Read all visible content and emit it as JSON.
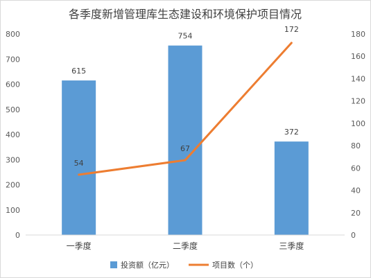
{
  "chart_data": {
    "type": "bar",
    "title": "各季度新增管理库生态建设和环境保护项目情况",
    "categories": [
      "一季度",
      "二季度",
      "三季度"
    ],
    "series": [
      {
        "name": "投资额（亿元）",
        "type": "bar",
        "axis": "left",
        "values": [
          615,
          754,
          372
        ],
        "color": "#5b9bd5"
      },
      {
        "name": "项目数（个）",
        "type": "line",
        "axis": "right",
        "values": [
          54,
          67,
          172
        ],
        "color": "#ed7d31"
      }
    ],
    "y_left": {
      "min": 0,
      "max": 800,
      "step": 100,
      "ticks": [
        "0",
        "100",
        "200",
        "300",
        "400",
        "500",
        "600",
        "700",
        "800"
      ]
    },
    "y_right": {
      "min": 0,
      "max": 180,
      "step": 20,
      "ticks": [
        "0",
        "20",
        "40",
        "60",
        "80",
        "100",
        "120",
        "140",
        "160",
        "180"
      ]
    },
    "data_labels": true,
    "gridlines": false,
    "legend_position": "bottom"
  }
}
